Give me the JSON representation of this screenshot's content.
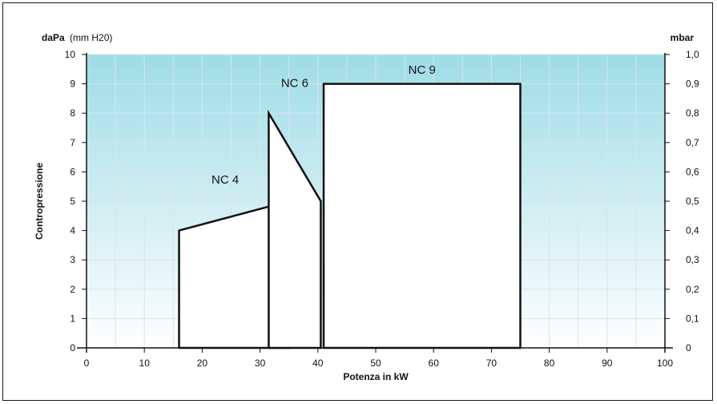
{
  "chart_data": {
    "type": "area",
    "xlabel": "Potenza in kW",
    "ylabel": "Contropressione",
    "y_left_unit_bold": "daPa",
    "y_left_unit_rest": "(mm H20)",
    "y_right_unit": "mbar",
    "xlim": [
      0,
      100
    ],
    "ylim": [
      0,
      10
    ],
    "x_ticks": [
      "0",
      "10",
      "20",
      "30",
      "40",
      "50",
      "60",
      "70",
      "80",
      "90",
      "100"
    ],
    "y_ticks": [
      "0",
      "1",
      "2",
      "3",
      "4",
      "5",
      "6",
      "7",
      "8",
      "9",
      "10"
    ],
    "y_right_ticks": [
      "0",
      "0,1",
      "0,2",
      "0,3",
      "0,4",
      "0,5",
      "0,6",
      "0,7",
      "0,8",
      "0,9",
      "1,0"
    ],
    "grid": true,
    "background_gradient": [
      "#9fdce6",
      "#ffffff"
    ],
    "series": [
      {
        "name": "NC 4",
        "points": [
          [
            16,
            0
          ],
          [
            16,
            4
          ],
          [
            35,
            5
          ],
          [
            35,
            0
          ]
        ]
      },
      {
        "name": "NC 6",
        "points": [
          [
            31.5,
            0
          ],
          [
            31.5,
            8
          ],
          [
            40.5,
            5
          ],
          [
            40.5,
            0
          ]
        ]
      },
      {
        "name": "NC 9",
        "points": [
          [
            41,
            0
          ],
          [
            41,
            9
          ],
          [
            75,
            9
          ],
          [
            75,
            0
          ]
        ]
      }
    ]
  }
}
